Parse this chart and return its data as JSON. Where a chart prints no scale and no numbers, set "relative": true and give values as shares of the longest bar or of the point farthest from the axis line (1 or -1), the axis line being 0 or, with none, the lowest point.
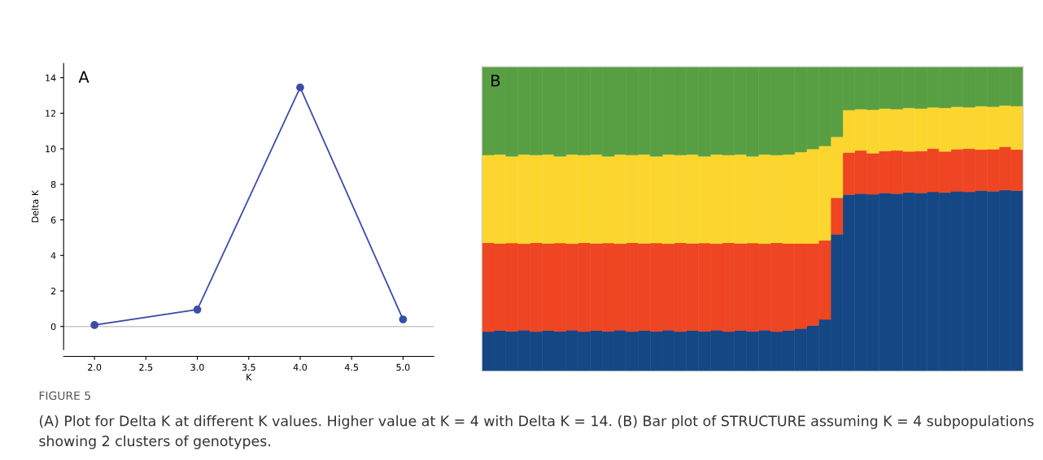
{
  "chart_data": [
    {
      "type": "line",
      "title": "A",
      "xlabel": "K",
      "ylabel": "Delta K",
      "x": [
        2.0,
        3.0,
        4.0,
        5.0
      ],
      "series": [
        {
          "color": "#3a4daa",
          "values": [
            0.08,
            0.95,
            13.45,
            0.4
          ]
        }
      ],
      "xlim": [
        1.7,
        5.3
      ],
      "xticks": [
        {
          "value": 2.0,
          "label": "2.0"
        },
        {
          "value": 2.5,
          "label": "2.5"
        },
        {
          "value": 3.0,
          "label": "3.0"
        },
        {
          "value": 3.5,
          "label": "3.5"
        },
        {
          "value": 4.0,
          "label": "4.0"
        },
        {
          "value": 4.5,
          "label": "4.5"
        },
        {
          "value": 5.0,
          "label": "5.0"
        }
      ],
      "ylim": [
        -1.3,
        14.8
      ],
      "yticks": [
        0,
        2,
        4,
        6,
        8,
        10,
        12,
        14
      ],
      "ref_lines": [
        {
          "axis": "y",
          "value": 0,
          "color": "#c8c8c8"
        }
      ],
      "marker": "circle",
      "line_style": "solid",
      "grid": false,
      "annotations": [
        "FIGURE 5",
        "(A) Plot for Delta K at different K values. Higher value at K = 4 with Delta K = 14. (B) Bar plot of STRUCTURE assuming K = 4 subpopulations showing 2 clusters of genotypes."
      ]
    },
    {
      "type": "bar",
      "title": "B",
      "relative": true,
      "stacked": true,
      "categories": [
        null,
        null,
        null,
        null,
        null,
        null,
        null,
        null,
        null,
        null,
        null,
        null,
        null,
        null,
        null,
        null,
        null,
        null,
        null,
        null,
        null,
        null,
        null,
        null,
        null,
        null,
        null,
        null,
        null,
        null,
        null,
        null,
        null,
        null,
        null,
        null,
        null,
        null,
        null,
        null,
        null,
        null,
        null,
        null,
        null
      ],
      "series": [
        {
          "color": "#154785",
          "values": [
            0.13,
            0.134,
            0.131,
            0.135,
            0.13,
            0.134,
            0.131,
            0.135,
            0.13,
            0.134,
            0.131,
            0.135,
            0.13,
            0.134,
            0.131,
            0.135,
            0.13,
            0.134,
            0.131,
            0.135,
            0.13,
            0.134,
            0.131,
            0.135,
            0.13,
            0.134,
            0.14,
            0.15,
            0.17,
            0.45,
            0.58,
            0.583,
            0.581,
            0.585,
            0.583,
            0.587,
            0.585,
            0.589,
            0.587,
            0.591,
            0.589,
            0.593,
            0.591,
            0.595,
            0.593
          ]
        },
        {
          "color": "#ee4522",
          "values": [
            0.292,
            0.286,
            0.29,
            0.284,
            0.292,
            0.286,
            0.29,
            0.284,
            0.292,
            0.286,
            0.29,
            0.284,
            0.292,
            0.286,
            0.29,
            0.284,
            0.292,
            0.286,
            0.29,
            0.284,
            0.292,
            0.286,
            0.29,
            0.284,
            0.292,
            0.286,
            0.28,
            0.27,
            0.26,
            0.12,
            0.138,
            0.142,
            0.135,
            0.138,
            0.142,
            0.135,
            0.138,
            0.142,
            0.135,
            0.138,
            0.142,
            0.135,
            0.138,
            0.142,
            0.135
          ]
        },
        {
          "color": "#fcd62f",
          "values": [
            0.288,
            0.292,
            0.285,
            0.293,
            0.288,
            0.292,
            0.285,
            0.293,
            0.288,
            0.292,
            0.285,
            0.293,
            0.288,
            0.292,
            0.285,
            0.293,
            0.288,
            0.292,
            0.285,
            0.293,
            0.288,
            0.292,
            0.285,
            0.293,
            0.288,
            0.292,
            0.3,
            0.31,
            0.31,
            0.2,
            0.14,
            0.136,
            0.143,
            0.14,
            0.136,
            0.143,
            0.14,
            0.136,
            0.143,
            0.14,
            0.136,
            0.143,
            0.14,
            0.136,
            0.143
          ]
        },
        {
          "color": "#589f43",
          "values": [
            0.29,
            0.288,
            0.294,
            0.288,
            0.29,
            0.288,
            0.294,
            0.288,
            0.29,
            0.288,
            0.294,
            0.288,
            0.29,
            0.288,
            0.294,
            0.288,
            0.29,
            0.288,
            0.294,
            0.288,
            0.29,
            0.288,
            0.294,
            0.288,
            0.29,
            0.288,
            0.28,
            0.27,
            0.26,
            0.23,
            0.142,
            0.139,
            0.141,
            0.137,
            0.139,
            0.135,
            0.137,
            0.133,
            0.135,
            0.131,
            0.133,
            0.129,
            0.131,
            0.127,
            0.129
          ]
        }
      ]
    }
  ]
}
